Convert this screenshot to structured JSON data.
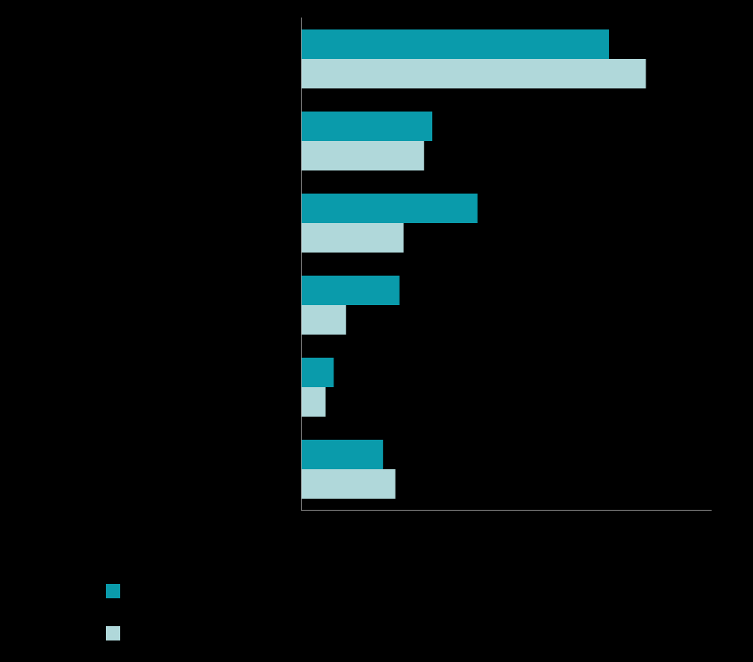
{
  "chart_data": {
    "type": "bar",
    "orientation": "horizontal",
    "categories": [
      null,
      null,
      null,
      null,
      null,
      null
    ],
    "series": [
      {
        "color": "#0a9bab",
        "values": [
          75,
          32,
          43,
          24,
          8,
          20
        ]
      },
      {
        "color": "#b0d8da",
        "values": [
          84,
          30,
          25,
          11,
          6,
          23
        ]
      }
    ],
    "xlim": [
      0,
      100
    ]
  }
}
